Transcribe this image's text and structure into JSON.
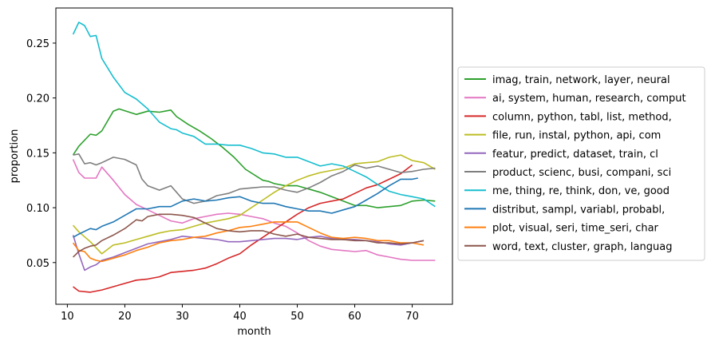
{
  "chart_data": {
    "type": "line",
    "title": "",
    "xlabel": "month",
    "ylabel": "proportion",
    "xlim": [
      8,
      77
    ],
    "ylim": [
      0.012,
      0.282
    ],
    "xticks": [
      10,
      20,
      30,
      40,
      50,
      60,
      70
    ],
    "yticks": [
      0.05,
      0.1,
      0.15,
      0.2,
      0.25
    ],
    "ytick_labels": [
      "0.05",
      "0.10",
      "0.15",
      "0.20",
      "0.25"
    ],
    "grid": false,
    "legend_position": "outside right",
    "series": [
      {
        "name": "imag, train, network, layer, neural",
        "color": "#2ca02c",
        "x": [
          11,
          12,
          14,
          15,
          16,
          18,
          19,
          22,
          24,
          26,
          28,
          29,
          31,
          33,
          35,
          37,
          39,
          41,
          44,
          45,
          46,
          48,
          50,
          52,
          54,
          56,
          58,
          60,
          62,
          64,
          66,
          68,
          70,
          72,
          74
        ],
        "y": [
          0.148,
          0.156,
          0.167,
          0.166,
          0.17,
          0.188,
          0.19,
          0.185,
          0.188,
          0.187,
          0.189,
          0.183,
          0.176,
          0.17,
          0.163,
          0.155,
          0.146,
          0.135,
          0.125,
          0.124,
          0.122,
          0.12,
          0.12,
          0.117,
          0.114,
          0.11,
          0.106,
          0.102,
          0.102,
          0.1,
          0.101,
          0.102,
          0.106,
          0.107,
          0.106
        ]
      },
      {
        "name": "ai, system, human, research, comput",
        "color": "#e377c2",
        "x": [
          11,
          12,
          13,
          14,
          15,
          16,
          18,
          20,
          22,
          24,
          26,
          28,
          30,
          32,
          34,
          36,
          38,
          40,
          42,
          44,
          46,
          48,
          50,
          52,
          54,
          56,
          58,
          60,
          62,
          64,
          66,
          68,
          70,
          72,
          74
        ],
        "y": [
          0.144,
          0.132,
          0.127,
          0.127,
          0.127,
          0.137,
          0.125,
          0.112,
          0.103,
          0.098,
          0.093,
          0.088,
          0.086,
          0.09,
          0.092,
          0.094,
          0.095,
          0.094,
          0.092,
          0.09,
          0.086,
          0.083,
          0.077,
          0.07,
          0.065,
          0.062,
          0.061,
          0.06,
          0.061,
          0.057,
          0.055,
          0.053,
          0.052,
          0.052,
          0.052
        ]
      },
      {
        "name": "column, python, tabl, list, method,",
        "color": "#d62728",
        "x": [
          11,
          12,
          14,
          16,
          18,
          20,
          22,
          24,
          26,
          28,
          30,
          32,
          34,
          36,
          38,
          40,
          42,
          44,
          46,
          48,
          50,
          52,
          54,
          56,
          58,
          60,
          62,
          64,
          66,
          68,
          70
        ],
        "y": [
          0.028,
          0.024,
          0.023,
          0.025,
          0.028,
          0.031,
          0.034,
          0.035,
          0.037,
          0.041,
          0.042,
          0.043,
          0.045,
          0.049,
          0.054,
          0.058,
          0.066,
          0.073,
          0.08,
          0.087,
          0.094,
          0.1,
          0.104,
          0.106,
          0.108,
          0.113,
          0.118,
          0.121,
          0.126,
          0.131,
          0.139
        ]
      },
      {
        "name": "file, run, instal, python, api, com",
        "color": "#bcbd22",
        "x": [
          11,
          12,
          14,
          16,
          18,
          20,
          22,
          24,
          26,
          28,
          30,
          32,
          34,
          36,
          38,
          40,
          42,
          44,
          46,
          48,
          50,
          52,
          54,
          56,
          58,
          60,
          62,
          64,
          66,
          68,
          70,
          72,
          74
        ],
        "y": [
          0.084,
          0.078,
          0.069,
          0.058,
          0.066,
          0.068,
          0.071,
          0.074,
          0.077,
          0.079,
          0.08,
          0.083,
          0.086,
          0.088,
          0.09,
          0.093,
          0.1,
          0.107,
          0.114,
          0.12,
          0.125,
          0.129,
          0.132,
          0.134,
          0.136,
          0.14,
          0.141,
          0.142,
          0.146,
          0.148,
          0.143,
          0.141,
          0.135
        ]
      },
      {
        "name": "featur, predict, dataset, train, cl",
        "color": "#9467bd",
        "x": [
          11,
          12,
          13,
          14,
          15,
          16,
          18,
          20,
          22,
          24,
          26,
          28,
          30,
          32,
          34,
          36,
          38,
          40,
          42,
          44,
          46,
          48,
          50,
          52,
          54,
          56,
          58,
          60,
          62,
          64,
          66,
          68,
          70,
          72
        ],
        "y": [
          0.075,
          0.058,
          0.043,
          0.046,
          0.048,
          0.052,
          0.055,
          0.059,
          0.063,
          0.067,
          0.069,
          0.071,
          0.074,
          0.073,
          0.072,
          0.071,
          0.069,
          0.069,
          0.07,
          0.071,
          0.072,
          0.072,
          0.071,
          0.073,
          0.074,
          0.072,
          0.071,
          0.071,
          0.07,
          0.069,
          0.067,
          0.066,
          0.068,
          0.07
        ]
      },
      {
        "name": "product, scienc, busi, compani, sci",
        "color": "#7f7f7f",
        "x": [
          11,
          12,
          13,
          14,
          15,
          16,
          18,
          20,
          22,
          23,
          24,
          26,
          28,
          29,
          30,
          32,
          34,
          36,
          38,
          40,
          42,
          44,
          46,
          48,
          50,
          52,
          54,
          56,
          58,
          60,
          62,
          64,
          66,
          68,
          70,
          72,
          74
        ],
        "y": [
          0.148,
          0.149,
          0.14,
          0.141,
          0.139,
          0.141,
          0.146,
          0.144,
          0.139,
          0.126,
          0.12,
          0.116,
          0.12,
          0.114,
          0.108,
          0.104,
          0.106,
          0.111,
          0.113,
          0.117,
          0.118,
          0.119,
          0.119,
          0.116,
          0.114,
          0.118,
          0.123,
          0.129,
          0.133,
          0.139,
          0.136,
          0.138,
          0.135,
          0.132,
          0.133,
          0.135,
          0.136
        ]
      },
      {
        "name": "me, thing, re, think, don, ve, good",
        "color": "#17becf",
        "x": [
          11,
          12,
          13,
          14,
          15,
          16,
          18,
          20,
          22,
          24,
          26,
          28,
          29,
          30,
          32,
          34,
          36,
          38,
          40,
          42,
          44,
          46,
          48,
          50,
          52,
          54,
          56,
          58,
          60,
          62,
          64,
          66,
          68,
          70,
          72,
          74
        ],
        "y": [
          0.258,
          0.269,
          0.266,
          0.256,
          0.257,
          0.236,
          0.219,
          0.205,
          0.199,
          0.19,
          0.178,
          0.172,
          0.171,
          0.168,
          0.165,
          0.158,
          0.158,
          0.157,
          0.157,
          0.154,
          0.15,
          0.149,
          0.146,
          0.146,
          0.142,
          0.138,
          0.14,
          0.138,
          0.133,
          0.128,
          0.121,
          0.115,
          0.112,
          0.11,
          0.108,
          0.101
        ]
      },
      {
        "name": "distribut, sampl, variabl, probabl,",
        "color": "#1f77b4",
        "x": [
          11,
          12,
          14,
          15,
          16,
          18,
          20,
          22,
          24,
          26,
          28,
          30,
          32,
          34,
          36,
          38,
          40,
          42,
          44,
          46,
          48,
          50,
          52,
          54,
          56,
          58,
          60,
          62,
          64,
          66,
          68,
          70,
          71
        ],
        "y": [
          0.073,
          0.076,
          0.081,
          0.08,
          0.083,
          0.087,
          0.093,
          0.099,
          0.099,
          0.101,
          0.101,
          0.106,
          0.108,
          0.106,
          0.107,
          0.109,
          0.11,
          0.106,
          0.104,
          0.104,
          0.101,
          0.099,
          0.097,
          0.097,
          0.095,
          0.098,
          0.101,
          0.107,
          0.113,
          0.12,
          0.126,
          0.126,
          0.127
        ]
      },
      {
        "name": "plot, visual, seri, time_seri, char",
        "color": "#ff7f0e",
        "x": [
          11,
          12,
          13,
          14,
          15,
          16,
          18,
          20,
          22,
          24,
          26,
          28,
          30,
          32,
          34,
          36,
          38,
          40,
          42,
          44,
          46,
          48,
          50,
          52,
          54,
          56,
          58,
          60,
          62,
          64,
          66,
          68,
          70,
          72
        ],
        "y": [
          0.068,
          0.061,
          0.06,
          0.054,
          0.052,
          0.051,
          0.054,
          0.057,
          0.061,
          0.064,
          0.068,
          0.07,
          0.071,
          0.073,
          0.074,
          0.077,
          0.079,
          0.082,
          0.083,
          0.085,
          0.087,
          0.087,
          0.087,
          0.082,
          0.077,
          0.073,
          0.072,
          0.073,
          0.072,
          0.07,
          0.07,
          0.068,
          0.068,
          0.066
        ]
      },
      {
        "name": "word, text, cluster, graph, languag",
        "color": "#8c564b",
        "x": [
          11,
          12,
          13,
          14,
          15,
          16,
          18,
          20,
          22,
          23,
          24,
          26,
          28,
          30,
          32,
          34,
          36,
          38,
          40,
          42,
          44,
          46,
          48,
          50,
          52,
          54,
          56,
          58,
          60,
          62,
          64,
          66,
          68,
          70,
          72
        ],
        "y": [
          0.055,
          0.06,
          0.063,
          0.065,
          0.066,
          0.07,
          0.075,
          0.081,
          0.089,
          0.088,
          0.092,
          0.094,
          0.094,
          0.093,
          0.091,
          0.086,
          0.081,
          0.079,
          0.078,
          0.079,
          0.079,
          0.076,
          0.074,
          0.076,
          0.073,
          0.072,
          0.071,
          0.071,
          0.07,
          0.07,
          0.068,
          0.068,
          0.067,
          0.068,
          0.07
        ]
      }
    ]
  }
}
